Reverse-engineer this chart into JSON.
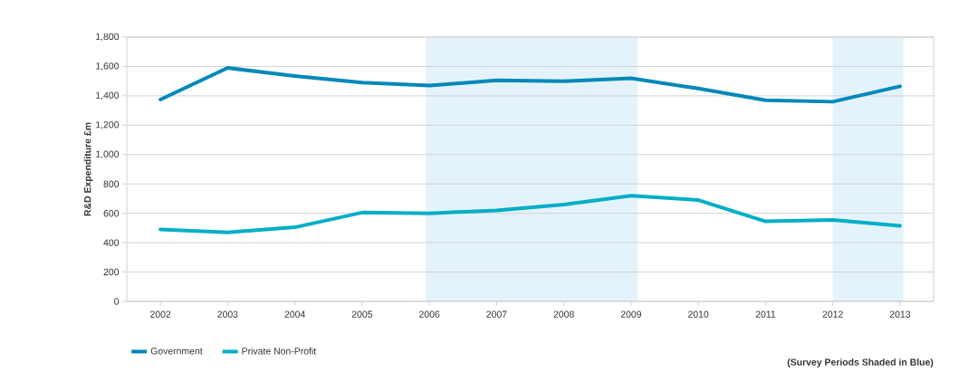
{
  "chart_data": {
    "type": "line",
    "ylabel": "R&D Expenditure £m",
    "x": [
      2002,
      2003,
      2004,
      2005,
      2006,
      2007,
      2008,
      2009,
      2010,
      2011,
      2012,
      2013
    ],
    "series": [
      {
        "name": "Government",
        "color": "#0088b8",
        "values": [
          1375,
          1590,
          1535,
          1490,
          1470,
          1505,
          1500,
          1520,
          1450,
          1370,
          1360,
          1465
        ]
      },
      {
        "name": "Private Non-Profit",
        "color": "#00aec6",
        "values": [
          490,
          470,
          505,
          605,
          600,
          620,
          660,
          720,
          690,
          545,
          555,
          515
        ]
      }
    ],
    "xlim": [
      2001.5,
      2013.5
    ],
    "xticks": [
      2002,
      2003,
      2004,
      2005,
      2006,
      2007,
      2008,
      2009,
      2010,
      2011,
      2012,
      2013
    ],
    "ylim": [
      0,
      1800
    ],
    "yticks": [
      {
        "value": 0,
        "label": "0"
      },
      {
        "value": 200,
        "label": "200"
      },
      {
        "value": 400,
        "label": "400"
      },
      {
        "value": 600,
        "label": "600"
      },
      {
        "value": 800,
        "label": "800"
      },
      {
        "value": 1000,
        "label": "1,000"
      },
      {
        "value": 1200,
        "label": "1,200"
      },
      {
        "value": 1400,
        "label": "1,400"
      },
      {
        "value": 1600,
        "label": "1,600"
      },
      {
        "value": 1800,
        "label": "1,800"
      }
    ],
    "bands": [
      {
        "axis": "x",
        "from": 2005.95,
        "to": 2009.1,
        "color": "#e4f3fb"
      },
      {
        "axis": "x",
        "from": 2012,
        "to": 2013.05,
        "color": "#e4f3fb"
      }
    ],
    "annotations": [
      "**(Survey Periods Shaded in Blue)**"
    ],
    "grid": "y",
    "legend": "bottom",
    "marker": "none",
    "line_style": "solid"
  }
}
